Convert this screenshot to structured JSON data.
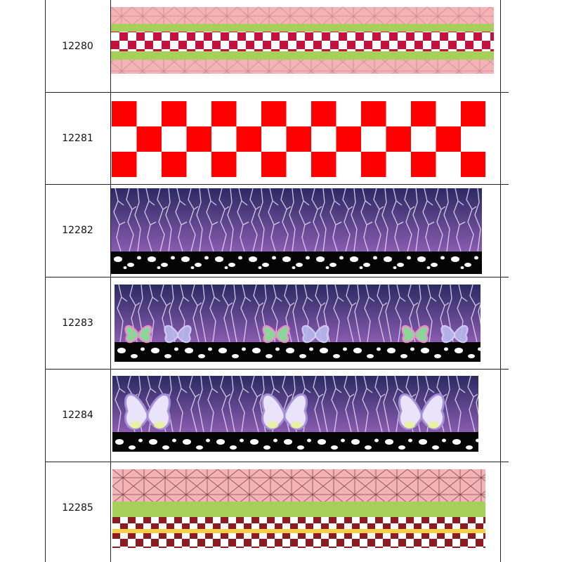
{
  "rows": [
    {
      "code": "12280",
      "pattern": "pink-asanoha-green-checker"
    },
    {
      "code": "12281",
      "pattern": "red-white-checker"
    },
    {
      "code": "12282",
      "pattern": "purple-thunder-black-dots"
    },
    {
      "code": "12283",
      "pattern": "purple-thunder-small-butterflies"
    },
    {
      "code": "12284",
      "pattern": "purple-thunder-large-butterflies"
    },
    {
      "code": "12285",
      "pattern": "pink-asanoha-green-maroon-checker"
    }
  ],
  "colors": {
    "pink": "#f4b3b7",
    "green": "#a6d05a",
    "crimson": "#c4123f",
    "red": "#ff0000",
    "purple_top": "#2b2a62",
    "purple_bottom": "#8a5bb0",
    "maroon": "#8e1a22",
    "yellow": "#f6cf4a"
  }
}
